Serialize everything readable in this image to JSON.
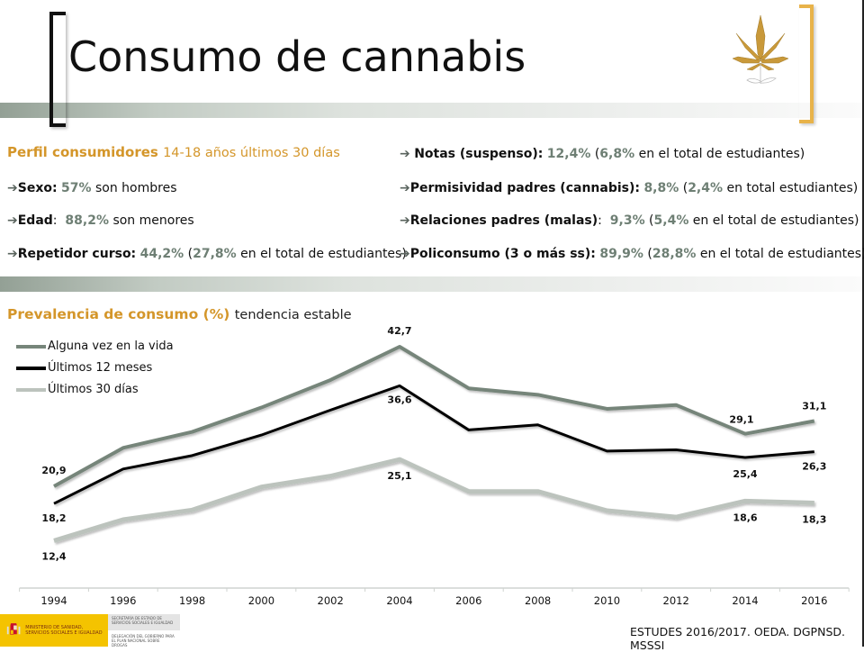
{
  "slide": {
    "title": "Consumo de cannabis",
    "icon": "cannabis-leaf-icon",
    "colors": {
      "accent": "#d4962a",
      "percent": "#6e7f74",
      "bracket_right": "#e8b34a"
    }
  },
  "profile": {
    "heading": "Perfil consumidores",
    "subheading": "14-18 años últimos 30 días",
    "left_items": [
      {
        "label": "Sexo:",
        "value": "57%",
        "rest": " son hombres"
      },
      {
        "label": "Edad",
        "colon": ":",
        "value": "88,2%",
        "rest": " son menores"
      },
      {
        "label": "Repetidor curso:",
        "value": "44,2%",
        "open": " (",
        "value2": "27,8%",
        "rest": " en el total de estudiantes)"
      }
    ],
    "right_items": [
      {
        "label": "Notas (suspenso):",
        "value": "12,4%",
        "open": " (",
        "value2": "6,8%",
        "rest": " en el total de estudiantes)"
      },
      {
        "label": "Permisividad padres (cannabis):",
        "value": "8,8%",
        "open": " (",
        "value2": "2,4%",
        "rest": " en total  estudiantes)"
      },
      {
        "label": "Relaciones padres (malas)",
        "colon": ":",
        "value": "9,3%",
        "open": " (",
        "value2": "5,4%",
        "rest": " en el total de estudiantes)"
      },
      {
        "label": "Policonsumo (3 o más ss):",
        "value": "89,9%",
        "open": " (",
        "value2": "28,8%",
        "rest": " en el total de estudiantes)"
      }
    ],
    "arrow": "➔"
  },
  "prevalence": {
    "heading": "Prevalencia de consumo (%)",
    "subheading": "tendencia estable"
  },
  "chart_data": {
    "type": "line",
    "title": "Prevalencia de consumo (%)",
    "xlabel": "",
    "ylabel": "",
    "categories": [
      "1994",
      "1996",
      "1998",
      "2000",
      "2002",
      "2004",
      "2006",
      "2008",
      "2010",
      "2012",
      "2014",
      "2016"
    ],
    "ylim": [
      0,
      50
    ],
    "grid": false,
    "legend": "top-left",
    "series": [
      {
        "name": "Alguna vez en la vida",
        "color": "#76857a",
        "values": [
          20.9,
          26.9,
          29.4,
          33.2,
          37.5,
          42.7,
          36.2,
          35.2,
          33.0,
          33.6,
          29.1,
          31.1
        ],
        "labels": {
          "0": "20,9",
          "5": "42,7",
          "10": "29,1",
          "11": "31,1"
        }
      },
      {
        "name": "Últimos 12 meses",
        "color": "#000000",
        "values": [
          18.2,
          23.6,
          25.7,
          28.9,
          32.8,
          36.6,
          29.7,
          30.5,
          26.4,
          26.6,
          25.4,
          26.3
        ],
        "labels": {
          "0": "18,2",
          "5": "36,6",
          "10": "25,4",
          "11": "26,3"
        }
      },
      {
        "name": "Últimos 30 días",
        "color": "#bcc3bd",
        "values": [
          12.4,
          15.7,
          17.2,
          20.8,
          22.5,
          25.1,
          20.1,
          20.1,
          17.1,
          16.1,
          18.6,
          18.3
        ],
        "labels": {
          "0": "12,4",
          "5": "25,1",
          "10": "18,6",
          "11": "18,3"
        }
      }
    ]
  },
  "footer": {
    "source": "ESTUDES 2016/2017. OEDA. DGPNSD. MSSSI",
    "logo": {
      "ministry": "MINISTERIO DE SANIDAD, SERVICIOS SOCIALES E IGUALDAD",
      "secretaria": "SECRETARÍA DE ESTADO DE SERVICIOS SOCIALES E IGUALDAD",
      "delegacion": "DELEGACIÓN DEL GOBIERNO PARA EL PLAN NACIONAL SOBRE DROGAS"
    }
  }
}
